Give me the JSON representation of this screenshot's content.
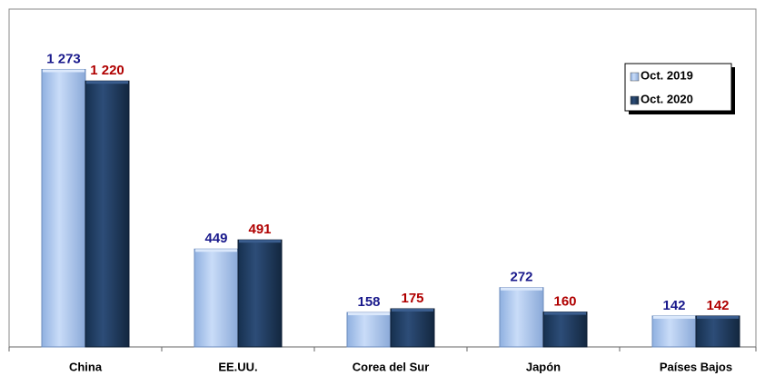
{
  "chart_data": {
    "type": "bar",
    "categories": [
      "China",
      "EE.UU.",
      "Corea del Sur",
      "Japón",
      "Países Bajos"
    ],
    "series": [
      {
        "name": "Oct. 2019",
        "color": "#a9c6f0",
        "label_color": "#1a1a8c",
        "values": [
          1273,
          449,
          158,
          272,
          142
        ],
        "value_labels": [
          "1 273",
          "449",
          "158",
          "272",
          "142"
        ]
      },
      {
        "name": "Oct. 2020",
        "color": "#1f3a62",
        "label_color": "#b00000",
        "values": [
          1220,
          491,
          175,
          160,
          142
        ],
        "value_labels": [
          "1 220",
          "491",
          "175",
          "160",
          "142"
        ]
      }
    ],
    "ylim": [
      0,
      1550
    ],
    "legend": "top-right"
  }
}
